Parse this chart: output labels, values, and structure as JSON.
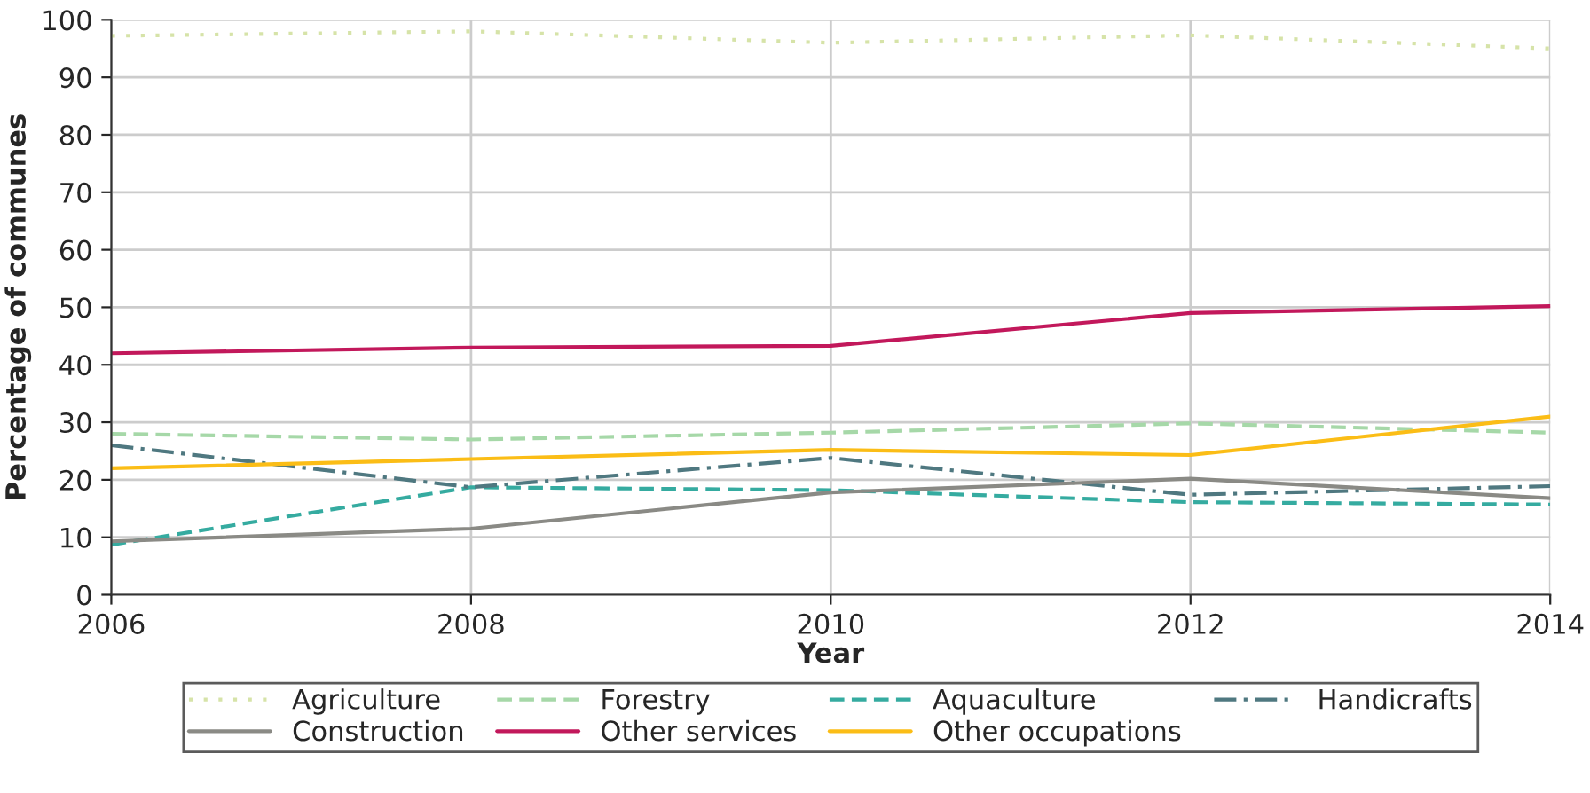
{
  "chart_data": {
    "type": "line",
    "xlabel": "Year",
    "ylabel": "Percentage of communes",
    "x": [
      2006,
      2008,
      2010,
      2012,
      2014
    ],
    "xlim": [
      2006,
      2014
    ],
    "xticks": [
      2006,
      2008,
      2010,
      2012,
      2014
    ],
    "ylim": [
      0,
      100
    ],
    "yticks": [
      0,
      10,
      20,
      30,
      40,
      50,
      60,
      70,
      80,
      90,
      100
    ],
    "grid": true,
    "legend": "bottom",
    "marker": "none",
    "series": [
      {
        "name": "Agriculture",
        "color": "#d6e3a8",
        "line_style": "dotted",
        "values": [
          97.2,
          98,
          96,
          97.3,
          95
        ]
      },
      {
        "name": "Forestry",
        "color": "#a6d8a8",
        "line_style": "dashed",
        "values": [
          28,
          27,
          28.2,
          29.8,
          28.2
        ]
      },
      {
        "name": "Aquaculture",
        "color": "#35aba0",
        "line_style": "dashed",
        "values": [
          8.7,
          18.7,
          18.2,
          16.1,
          15.7
        ]
      },
      {
        "name": "Handicrafts",
        "color": "#4f7880",
        "line_style": "dashdot",
        "values": [
          26,
          18.7,
          23.8,
          17.4,
          18.9
        ]
      },
      {
        "name": "Construction",
        "color": "#8a8a85",
        "line_style": "solid",
        "values": [
          9.3,
          11.5,
          17.8,
          20.2,
          16.8
        ]
      },
      {
        "name": "Other services",
        "color": "#c2185b",
        "line_style": "solid",
        "values": [
          42,
          43,
          43.3,
          49,
          50.2
        ]
      },
      {
        "name": "Other occupations",
        "color": "#fbbd16",
        "line_style": "solid",
        "values": [
          22,
          23.6,
          25.2,
          24.3,
          31
        ]
      }
    ]
  }
}
